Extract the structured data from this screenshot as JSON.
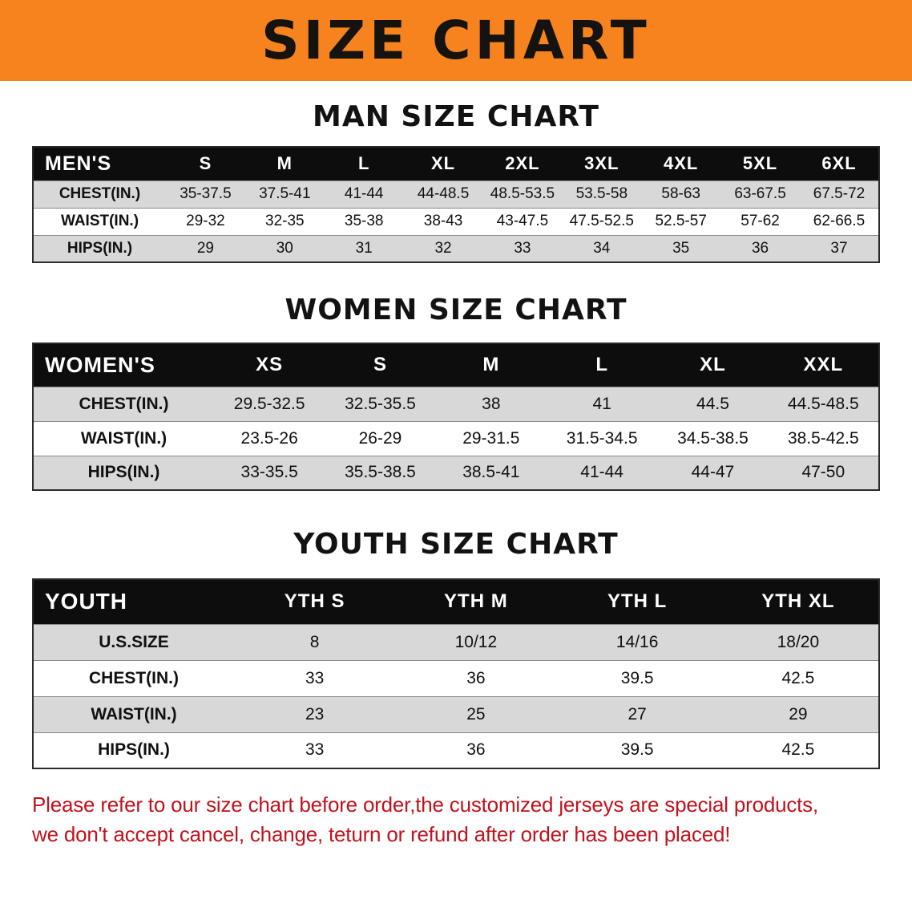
{
  "banner": {
    "title": "SIZE CHART"
  },
  "headings": {
    "men": "MAN SIZE CHART",
    "women": "WOMEN SIZE CHART",
    "youth": "YOUTH SIZE CHART"
  },
  "men": {
    "label": "MEN'S",
    "columns": [
      "S",
      "M",
      "L",
      "XL",
      "2XL",
      "3XL",
      "4XL",
      "5XL",
      "6XL"
    ],
    "rows": [
      {
        "label": "CHEST(IN.)",
        "values": [
          "35-37.5",
          "37.5-41",
          "41-44",
          "44-48.5",
          "48.5-53.5",
          "53.5-58",
          "58-63",
          "63-67.5",
          "67.5-72"
        ]
      },
      {
        "label": "WAIST(IN.)",
        "values": [
          "29-32",
          "32-35",
          "35-38",
          "38-43",
          "43-47.5",
          "47.5-52.5",
          "52.5-57",
          "57-62",
          "62-66.5"
        ]
      },
      {
        "label": "HIPS(IN.)",
        "values": [
          "29",
          "30",
          "31",
          "32",
          "33",
          "34",
          "35",
          "36",
          "37"
        ]
      }
    ]
  },
  "women": {
    "label": "WOMEN'S",
    "columns": [
      "XS",
      "S",
      "M",
      "L",
      "XL",
      "XXL"
    ],
    "rows": [
      {
        "label": "CHEST(IN.)",
        "values": [
          "29.5-32.5",
          "32.5-35.5",
          "38",
          "41",
          "44.5",
          "44.5-48.5"
        ]
      },
      {
        "label": "WAIST(IN.)",
        "values": [
          "23.5-26",
          "26-29",
          "29-31.5",
          "31.5-34.5",
          "34.5-38.5",
          "38.5-42.5"
        ]
      },
      {
        "label": "HIPS(IN.)",
        "values": [
          "33-35.5",
          "35.5-38.5",
          "38.5-41",
          "41-44",
          "44-47",
          "47-50"
        ]
      }
    ]
  },
  "youth": {
    "label": "YOUTH",
    "columns": [
      "YTH S",
      "YTH M",
      "YTH L",
      "YTH XL"
    ],
    "rows": [
      {
        "label": "U.S.SIZE",
        "values": [
          "8",
          "10/12",
          "14/16",
          "18/20"
        ]
      },
      {
        "label": "CHEST(IN.)",
        "values": [
          "33",
          "36",
          "39.5",
          "42.5"
        ]
      },
      {
        "label": "WAIST(IN.)",
        "values": [
          "23",
          "25",
          "27",
          "29"
        ]
      },
      {
        "label": "HIPS(IN.)",
        "values": [
          "33",
          "36",
          "39.5",
          "42.5"
        ]
      }
    ]
  },
  "note": {
    "line1": "Please refer to our size chart before order,the customized jerseys are special products,",
    "line2": "we don't accept cancel, change, teturn or refund after order has been placed!"
  },
  "colors": {
    "banner_bg": "#f6831e",
    "header_bg": "#0d0d0d",
    "shaded_row": "#d8d8d8",
    "note_red": "#c1121c"
  }
}
